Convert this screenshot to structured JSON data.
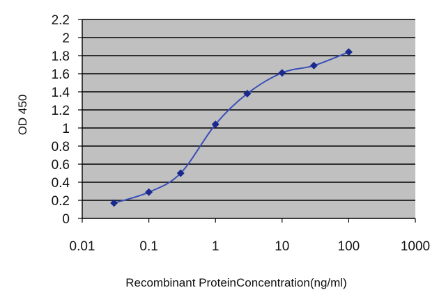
{
  "chart_data": {
    "type": "line",
    "xscale": "log",
    "xlim": [
      0.01,
      1000
    ],
    "ylim": [
      0,
      2.2
    ],
    "xticks": [
      "0.01",
      "0.1",
      "1",
      "10",
      "100",
      "1000"
    ],
    "yticks": [
      "0",
      "0.2",
      "0.4",
      "0.6",
      "0.8",
      "1",
      "1.2",
      "1.4",
      "1.6",
      "1.8",
      "2",
      "2.2"
    ],
    "xlabel": "Recombinant ProteinConcentration(ng/ml)",
    "ylabel": "OD 450",
    "grid": "horizontal",
    "legend": "none",
    "series": [
      {
        "x": [
          0.03,
          0.1,
          0.3,
          1,
          3,
          10,
          30,
          100
        ],
        "y": [
          0.17,
          0.29,
          0.5,
          1.04,
          1.38,
          1.61,
          1.69,
          1.84
        ]
      }
    ],
    "colors": {
      "line": "#3a4fb8",
      "marker": "#1a2a8c",
      "plot_background": "#c0c0c0",
      "gridline": "#000000",
      "axis": "#000000"
    }
  }
}
